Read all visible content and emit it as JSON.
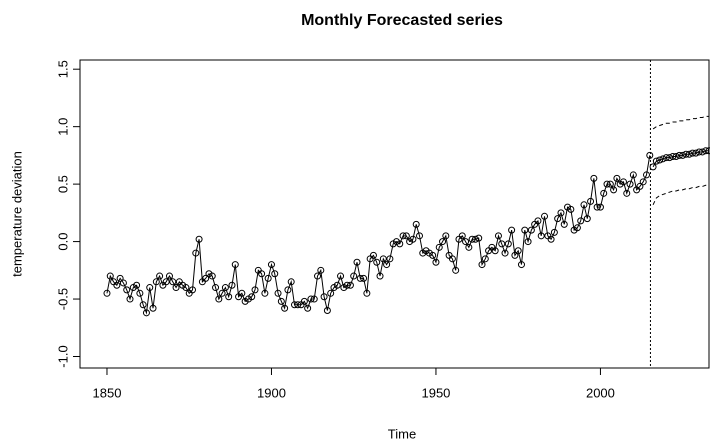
{
  "chart_data": {
    "type": "line",
    "title": "Monthly Forecasted series",
    "xlabel": "Time",
    "ylabel": "temperature deviation",
    "xlim": [
      1841.8,
      2033
    ],
    "ylim": [
      -1.1,
      1.58
    ],
    "xticks": [
      1850,
      1900,
      1950,
      2000
    ],
    "yticks": [
      {
        "value": -1,
        "label": "-1.0"
      },
      {
        "value": -0.5,
        "label": "-0.5"
      },
      {
        "value": 0,
        "label": "0.0"
      },
      {
        "value": 0.5,
        "label": "0.5"
      },
      {
        "value": 1,
        "label": "1.0"
      },
      {
        "value": 1.5,
        "label": "1.5"
      }
    ],
    "vlines": [
      2015.2
    ],
    "series": [
      {
        "color": "#000000",
        "style": "points-line",
        "x": [
          1850,
          1851,
          1852,
          1853,
          1854,
          1855,
          1856,
          1857,
          1858,
          1859,
          1860,
          1861,
          1862,
          1863,
          1864,
          1865,
          1866,
          1867,
          1868,
          1869,
          1870,
          1871,
          1872,
          1873,
          1874,
          1875,
          1876,
          1877,
          1878,
          1879,
          1880,
          1881,
          1882,
          1883,
          1884,
          1885,
          1886,
          1887,
          1888,
          1889,
          1890,
          1891,
          1892,
          1893,
          1894,
          1895,
          1896,
          1897,
          1898,
          1899,
          1900,
          1901,
          1902,
          1903,
          1904,
          1905,
          1906,
          1907,
          1908,
          1909,
          1910,
          1911,
          1912,
          1913,
          1914,
          1915,
          1916,
          1917,
          1918,
          1919,
          1920,
          1921,
          1922,
          1923,
          1924,
          1925,
          1926,
          1927,
          1928,
          1929,
          1930,
          1931,
          1932,
          1933,
          1934,
          1935,
          1936,
          1937,
          1938,
          1939,
          1940,
          1941,
          1942,
          1943,
          1944,
          1945,
          1946,
          1947,
          1948,
          1949,
          1950,
          1951,
          1952,
          1953,
          1954,
          1955,
          1956,
          1957,
          1958,
          1959,
          1960,
          1961,
          1962,
          1963,
          1964,
          1965,
          1966,
          1967,
          1968,
          1969,
          1970,
          1971,
          1972,
          1973,
          1974,
          1975,
          1976,
          1977,
          1978,
          1979,
          1980,
          1981,
          1982,
          1983,
          1984,
          1985,
          1986,
          1987,
          1988,
          1989,
          1990,
          1991,
          1992,
          1993,
          1994,
          1995,
          1996,
          1997,
          1998,
          1999,
          2000,
          2001,
          2002,
          2003,
          2004,
          2005,
          2006,
          2007,
          2008,
          2009,
          2010,
          2011,
          2012,
          2013,
          2014,
          2015
        ],
        "values": [
          -0.45,
          -0.3,
          -0.35,
          -0.38,
          -0.32,
          -0.36,
          -0.42,
          -0.5,
          -0.4,
          -0.38,
          -0.45,
          -0.55,
          -0.62,
          -0.4,
          -0.58,
          -0.35,
          -0.3,
          -0.38,
          -0.35,
          -0.3,
          -0.35,
          -0.4,
          -0.35,
          -0.38,
          -0.4,
          -0.45,
          -0.42,
          -0.1,
          0.02,
          -0.35,
          -0.32,
          -0.28,
          -0.3,
          -0.4,
          -0.5,
          -0.45,
          -0.4,
          -0.48,
          -0.38,
          -0.2,
          -0.48,
          -0.45,
          -0.52,
          -0.5,
          -0.48,
          -0.42,
          -0.25,
          -0.28,
          -0.45,
          -0.32,
          -0.2,
          -0.28,
          -0.45,
          -0.52,
          -0.58,
          -0.42,
          -0.35,
          -0.55,
          -0.55,
          -0.55,
          -0.52,
          -0.58,
          -0.5,
          -0.5,
          -0.3,
          -0.25,
          -0.48,
          -0.6,
          -0.45,
          -0.4,
          -0.38,
          -0.3,
          -0.4,
          -0.38,
          -0.38,
          -0.3,
          -0.18,
          -0.32,
          -0.32,
          -0.45,
          -0.15,
          -0.12,
          -0.18,
          -0.3,
          -0.15,
          -0.2,
          -0.15,
          -0.02,
          0.0,
          -0.02,
          0.05,
          0.05,
          0.0,
          0.02,
          0.15,
          0.05,
          -0.1,
          -0.08,
          -0.1,
          -0.12,
          -0.18,
          -0.05,
          0.0,
          0.05,
          -0.12,
          -0.15,
          -0.25,
          0.02,
          0.05,
          0.0,
          -0.05,
          0.02,
          0.02,
          0.03,
          -0.2,
          -0.15,
          -0.08,
          -0.05,
          -0.08,
          0.05,
          -0.02,
          -0.1,
          -0.02,
          0.1,
          -0.12,
          -0.08,
          -0.2,
          0.1,
          0.0,
          0.1,
          0.15,
          0.18,
          0.05,
          0.22,
          0.05,
          0.02,
          0.08,
          0.2,
          0.25,
          0.15,
          0.3,
          0.28,
          0.1,
          0.12,
          0.18,
          0.32,
          0.2,
          0.35,
          0.55,
          0.3,
          0.3,
          0.42,
          0.5,
          0.5,
          0.45,
          0.55,
          0.5,
          0.52,
          0.42,
          0.5,
          0.58,
          0.45,
          0.48,
          0.52,
          0.58,
          0.75
        ]
      },
      {
        "color": "#000000",
        "style": "points-line",
        "x": [
          2016,
          2017,
          2018,
          2019,
          2020,
          2021,
          2022,
          2023,
          2024,
          2025,
          2026,
          2027,
          2028,
          2029,
          2030,
          2031,
          2032,
          2033
        ],
        "values": [
          0.65,
          0.7,
          0.71,
          0.72,
          0.73,
          0.73,
          0.74,
          0.74,
          0.75,
          0.75,
          0.76,
          0.76,
          0.77,
          0.77,
          0.78,
          0.78,
          0.79,
          0.79
        ]
      },
      {
        "color": "#000000",
        "style": "dashed",
        "x": [
          2016,
          2017,
          2018,
          2019,
          2020,
          2021,
          2022,
          2023,
          2024,
          2025,
          2026,
          2027,
          2028,
          2029,
          2030,
          2031,
          2032,
          2033
        ],
        "values": [
          0.98,
          1.0,
          1.01,
          1.02,
          1.03,
          1.03,
          1.04,
          1.04,
          1.05,
          1.05,
          1.06,
          1.06,
          1.07,
          1.07,
          1.08,
          1.08,
          1.09,
          1.09
        ]
      },
      {
        "color": "#000000",
        "style": "dashed",
        "x": [
          2016,
          2017,
          2018,
          2019,
          2020,
          2021,
          2022,
          2023,
          2024,
          2025,
          2026,
          2027,
          2028,
          2029,
          2030,
          2031,
          2032,
          2033
        ],
        "values": [
          0.32,
          0.38,
          0.4,
          0.41,
          0.42,
          0.43,
          0.44,
          0.44,
          0.45,
          0.45,
          0.46,
          0.46,
          0.47,
          0.47,
          0.48,
          0.48,
          0.49,
          0.49
        ]
      }
    ]
  }
}
